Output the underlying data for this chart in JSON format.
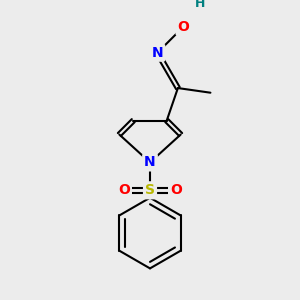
{
  "background_color": "#ececec",
  "bond_color": "#000000",
  "bond_width": 1.5,
  "atom_colors": {
    "N_pyrrole": "#0000ff",
    "N_oxime": "#0000ff",
    "O": "#ff0000",
    "S": "#b8b800",
    "H": "#008080"
  },
  "figsize": [
    3.0,
    3.0
  ],
  "dpi": 100
}
